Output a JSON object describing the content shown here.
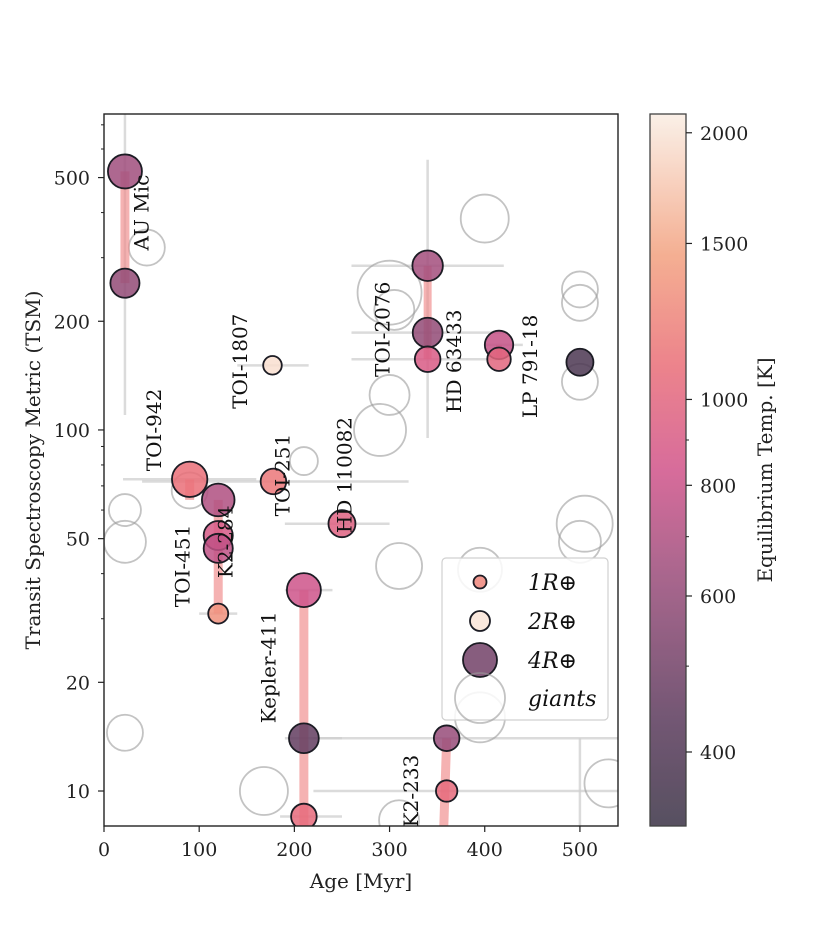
{
  "chart_data": {
    "type": "scatter",
    "xlabel": "Age [Myr]",
    "ylabel": "Transit Spectroscopy Metric (TSM)",
    "xlim": [
      0,
      540
    ],
    "ylim": [
      8,
      750
    ],
    "yscale": "log",
    "xticks": [
      0,
      100,
      200,
      300,
      400,
      500
    ],
    "xtick_labels": [
      "0",
      "100",
      "200",
      "300",
      "400",
      "500"
    ],
    "yticks": [
      10,
      20,
      50,
      100,
      200,
      500
    ],
    "ytick_labels": [
      "10",
      "20",
      "50",
      "100",
      "200",
      "500"
    ],
    "colorbar": {
      "label": "Equilibrium Temp. [K]",
      "range": [
        330,
        2100
      ],
      "scale": "log",
      "ticks": [
        400,
        600,
        800,
        1000,
        1500,
        2000
      ],
      "tick_labels": [
        "400",
        "600",
        "800",
        "1000",
        "1500",
        "2000"
      ]
    },
    "legend": {
      "position": "lower-right",
      "entries": [
        {
          "label": "1R⊕",
          "radius": 1,
          "teq": 1250
        },
        {
          "label": "2R⊕",
          "radius": 2,
          "teq": 2000
        },
        {
          "label": "4R⊕",
          "radius": 4,
          "teq": 500
        },
        {
          "label": "giants",
          "giant": true
        }
      ]
    },
    "planets": [
      {
        "x": 22,
        "y": 520,
        "radius": 4.0,
        "teq": 650
      },
      {
        "x": 22,
        "y": 255,
        "radius": 3.3,
        "teq": 600
      },
      {
        "x": 90,
        "y": 73,
        "radius": 4.2,
        "teq": 1100
      },
      {
        "x": 120,
        "y": 64,
        "radius": 3.8,
        "teq": 700
      },
      {
        "x": 120,
        "y": 51,
        "radius": 3.3,
        "teq": 880
      },
      {
        "x": 120,
        "y": 47,
        "radius": 3.3,
        "teq": 760
      },
      {
        "x": 120,
        "y": 31,
        "radius": 2.0,
        "teq": 1320
      },
      {
        "x": 177,
        "y": 151,
        "radius": 1.8,
        "teq": 1950
      },
      {
        "x": 178,
        "y": 72,
        "radius": 2.8,
        "teq": 1150
      },
      {
        "x": 210,
        "y": 36,
        "radius": 4.0,
        "teq": 820
      },
      {
        "x": 210,
        "y": 14,
        "radius": 3.4,
        "teq": 450
      },
      {
        "x": 210,
        "y": 8.5,
        "radius": 2.8,
        "teq": 1050
      },
      {
        "x": 250,
        "y": 55,
        "radius": 3.0,
        "teq": 960
      },
      {
        "x": 340,
        "y": 285,
        "radius": 3.5,
        "teq": 660
      },
      {
        "x": 340,
        "y": 186,
        "radius": 3.4,
        "teq": 600
      },
      {
        "x": 340,
        "y": 157,
        "radius": 2.8,
        "teq": 900
      },
      {
        "x": 415,
        "y": 172,
        "radius": 3.2,
        "teq": 780
      },
      {
        "x": 415,
        "y": 157,
        "radius": 2.5,
        "teq": 1000
      },
      {
        "x": 360,
        "y": 14,
        "radius": 2.8,
        "teq": 620
      },
      {
        "x": 360,
        "y": 10,
        "radius": 2.2,
        "teq": 1050
      },
      {
        "x": 500,
        "y": 154,
        "radius": 3.0,
        "teq": 380
      }
    ],
    "links": [
      {
        "x1": 22,
        "y1": 520,
        "x2": 22,
        "y2": 255,
        "w": 9
      },
      {
        "x1": 90,
        "y1": 73,
        "x2": 90,
        "y2": 64,
        "w": 9
      },
      {
        "x1": 120,
        "y1": 64,
        "x2": 120,
        "y2": 31,
        "w": 9
      },
      {
        "x1": 210,
        "y1": 36,
        "x2": 210,
        "y2": 8,
        "w": 9
      },
      {
        "x1": 340,
        "y1": 285,
        "x2": 340,
        "y2": 157,
        "w": 8
      },
      {
        "x1": 360,
        "y1": 14,
        "x2": 357,
        "y2": 8,
        "w": 9
      },
      {
        "x1": 415,
        "y1": 172,
        "x2": 415,
        "y2": 157,
        "w": 6
      }
    ],
    "errorbars": [
      {
        "x": 22,
        "y": 520,
        "xerr": [
          0,
          0
        ],
        "yerr": [
          110,
          750
        ]
      },
      {
        "x": 177,
        "y": 151,
        "xerr": [
          140,
          215
        ],
        "yerr": [
          0,
          0
        ]
      },
      {
        "x": 90,
        "y": 73,
        "xerr": [
          20,
          160
        ],
        "yerr": [
          0,
          0
        ]
      },
      {
        "x": 178,
        "y": 72,
        "xerr": [
          40,
          320
        ],
        "yerr": [
          0,
          0
        ]
      },
      {
        "x": 120,
        "y": 31,
        "xerr": [
          100,
          140
        ],
        "yerr": [
          0,
          0
        ]
      },
      {
        "x": 210,
        "y": 36,
        "xerr": [
          190,
          240
        ],
        "yerr": [
          0,
          0
        ]
      },
      {
        "x": 210,
        "y": 8.5,
        "xerr": [
          185,
          250
        ],
        "yerr": [
          0,
          0
        ]
      },
      {
        "x": 210,
        "y": 14,
        "xerr": [
          190,
          250
        ],
        "yerr": [
          0,
          0
        ]
      },
      {
        "x": 250,
        "y": 55,
        "xerr": [
          190,
          300
        ],
        "yerr": [
          0,
          0
        ]
      },
      {
        "x": 340,
        "y": 285,
        "xerr": [
          260,
          420
        ],
        "yerr": [
          0,
          0
        ]
      },
      {
        "x": 340,
        "y": 186,
        "xerr": [
          260,
          420
        ],
        "yerr": [
          0,
          0
        ]
      },
      {
        "x": 340,
        "y": 157,
        "xerr": [
          260,
          420
        ],
        "yerr": [
          0,
          0
        ]
      },
      {
        "x": 340,
        "y": 400,
        "xerr": [
          0,
          0
        ],
        "yerr": [
          95,
          560
        ]
      },
      {
        "x": 415,
        "y": 172,
        "xerr": [
          400,
          440
        ],
        "yerr": [
          0,
          0
        ]
      },
      {
        "x": 360,
        "y": 14,
        "xerr": [
          220,
          540
        ],
        "yerr": [
          0,
          0
        ]
      },
      {
        "x": 360,
        "y": 10,
        "xerr": [
          220,
          540
        ],
        "yerr": [
          0,
          0
        ]
      },
      {
        "x": 500,
        "y": 14,
        "xerr": [
          0,
          0
        ],
        "yerr": [
          8,
          14
        ]
      },
      {
        "x": 90,
        "y": 73,
        "xerr": [
          0,
          0
        ],
        "yerr": [
          0,
          0
        ]
      }
    ],
    "giants": [
      {
        "x": 45,
        "y": 320,
        "r": 18
      },
      {
        "x": 22,
        "y": 60,
        "r": 16
      },
      {
        "x": 22,
        "y": 49,
        "r": 21
      },
      {
        "x": 22,
        "y": 14.5,
        "r": 18
      },
      {
        "x": 90,
        "y": 68,
        "r": 18
      },
      {
        "x": 210,
        "y": 82,
        "r": 14
      },
      {
        "x": 300,
        "y": 240,
        "r": 32
      },
      {
        "x": 305,
        "y": 215,
        "r": 20
      },
      {
        "x": 300,
        "y": 125,
        "r": 20
      },
      {
        "x": 290,
        "y": 100,
        "r": 26
      },
      {
        "x": 310,
        "y": 42,
        "r": 23
      },
      {
        "x": 400,
        "y": 385,
        "r": 24
      },
      {
        "x": 395,
        "y": 41,
        "r": 22
      },
      {
        "x": 395,
        "y": 16,
        "r": 25
      },
      {
        "x": 500,
        "y": 245,
        "r": 18
      },
      {
        "x": 500,
        "y": 225,
        "r": 18
      },
      {
        "x": 500,
        "y": 136,
        "r": 18
      },
      {
        "x": 505,
        "y": 55,
        "r": 28
      },
      {
        "x": 500,
        "y": 49,
        "r": 21
      },
      {
        "x": 168,
        "y": 10,
        "r": 24
      },
      {
        "x": 310,
        "y": 8.3,
        "r": 20
      },
      {
        "x": 530,
        "y": 10.5,
        "r": 24
      }
    ],
    "annotations": [
      {
        "text": "AU Mic",
        "x": 47,
        "y": 400,
        "rotation": -90,
        "color": "#111111"
      },
      {
        "text": "TOI-942",
        "x": 60,
        "y": 100,
        "rotation": -90,
        "color": "#111111"
      },
      {
        "text": "TOI-1807",
        "x": 150,
        "y": 155,
        "rotation": -90,
        "color": "#111111"
      },
      {
        "text": "TOI-251",
        "x": 195,
        "y": 75,
        "rotation": -90,
        "color": "#111111"
      },
      {
        "text": "TOI-451",
        "x": 90,
        "y": 42,
        "rotation": -90,
        "color": "#111111"
      },
      {
        "text": "K2-284",
        "x": 135,
        "y": 49,
        "rotation": -90,
        "color": "#111111"
      },
      {
        "text": "HD 110082",
        "x": 260,
        "y": 75,
        "rotation": -90,
        "color": "#111111"
      },
      {
        "text": "TOI-2076",
        "x": 300,
        "y": 190,
        "rotation": -90,
        "color": "#c2295a"
      },
      {
        "text": "HD 63433",
        "x": 375,
        "y": 155,
        "rotation": -90,
        "color": "#111111"
      },
      {
        "text": "LP 791-18",
        "x": 455,
        "y": 150,
        "rotation": -90,
        "color": "#111111"
      },
      {
        "text": "Kepler-411",
        "x": 180,
        "y": 22,
        "rotation": -90,
        "color": "#111111"
      },
      {
        "text": "K2-233",
        "x": 330,
        "y": 10,
        "rotation": -90,
        "color": "#111111"
      }
    ]
  }
}
